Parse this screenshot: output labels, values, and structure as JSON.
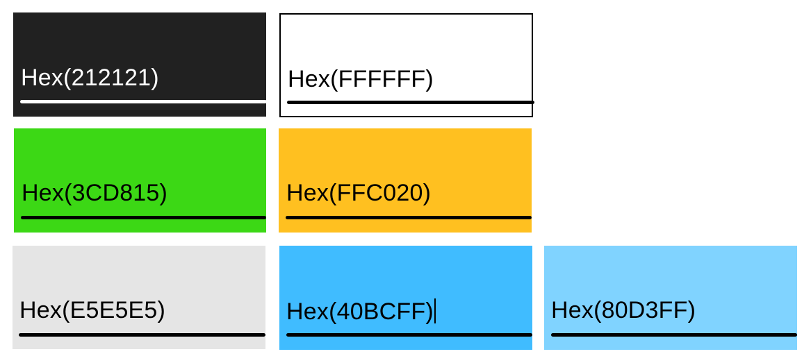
{
  "swatches": [
    {
      "id": "212121",
      "label": "Hex(212121)",
      "background": "#212121",
      "text_color": "#ffffff",
      "underline_color": "#ffffff",
      "bordered": false,
      "focused": false
    },
    {
      "id": "FFFFFF",
      "label": "Hex(FFFFFF)",
      "background": "#FFFFFF",
      "text_color": "#000000",
      "underline_color": "#000000",
      "bordered": true,
      "focused": false
    },
    {
      "id": "3CD815",
      "label": "Hex(3CD815)",
      "background": "#3CD815",
      "text_color": "#000000",
      "underline_color": "#000000",
      "bordered": false,
      "focused": false
    },
    {
      "id": "FFC020",
      "label": "Hex(FFC020)",
      "background": "#FFC020",
      "text_color": "#000000",
      "underline_color": "#000000",
      "bordered": false,
      "focused": false
    },
    {
      "id": "E5E5E5",
      "label": "Hex(E5E5E5)",
      "background": "#E5E5E5",
      "text_color": "#000000",
      "underline_color": "#000000",
      "bordered": false,
      "focused": false
    },
    {
      "id": "40BCFF",
      "label": "Hex(40BCFF)",
      "background": "#40BCFF",
      "text_color": "#000000",
      "underline_color": "#000000",
      "bordered": false,
      "focused": true
    },
    {
      "id": "80D3FF",
      "label": "Hex(80D3FF)",
      "background": "#80D3FF",
      "text_color": "#000000",
      "underline_color": "#000000",
      "bordered": false,
      "focused": false
    }
  ]
}
